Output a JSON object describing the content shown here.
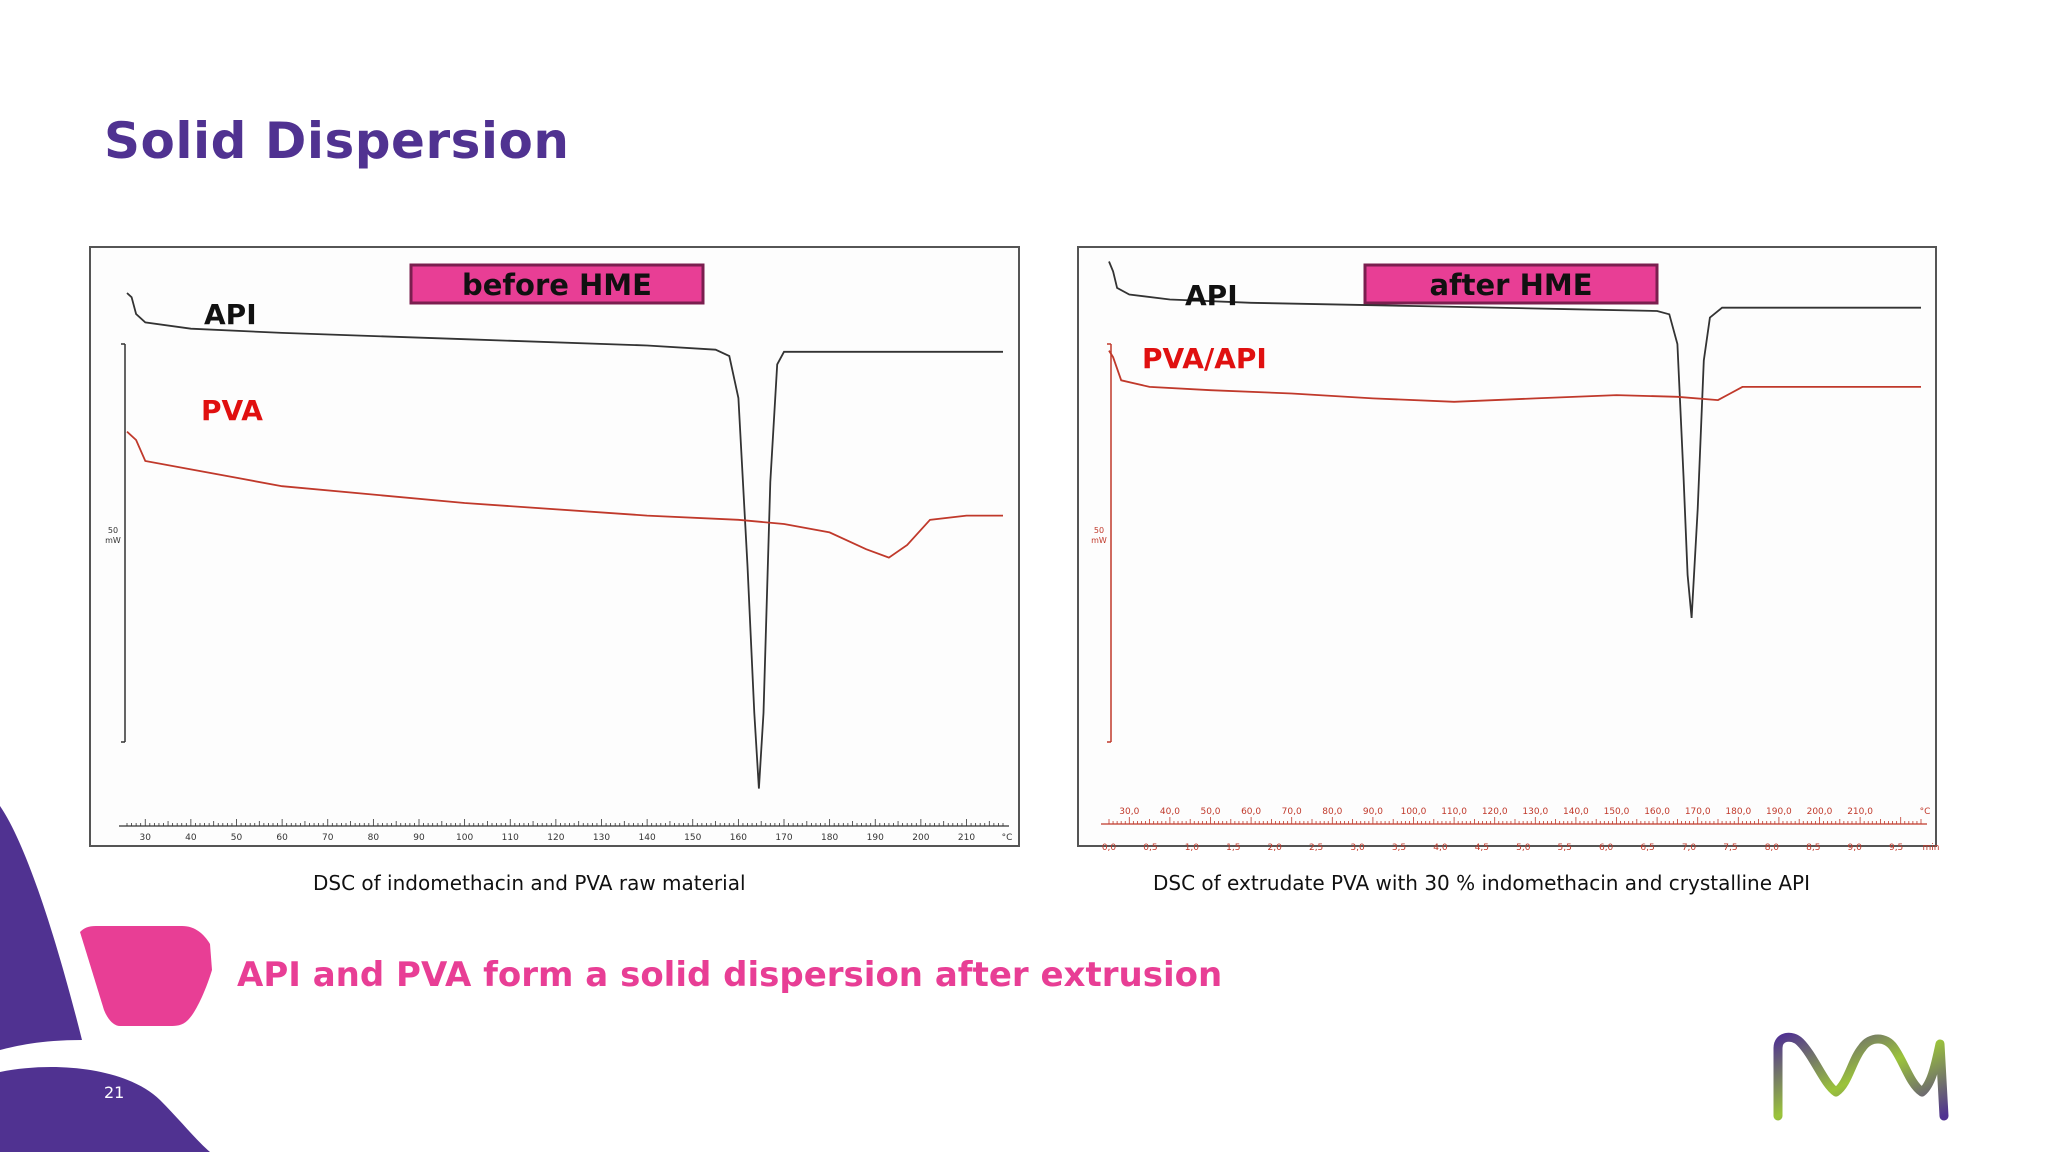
{
  "slide": {
    "title": "Solid Dispersion",
    "conclusion": "API and PVA form a solid dispersion after extrusion",
    "page_number": "21",
    "colors": {
      "title": "#503291",
      "accent": "#e83e95",
      "brand_purple": "#503291",
      "logo_green": "#9bc43a"
    },
    "logo_icon": "merck-m-logo"
  },
  "chart_data": [
    {
      "type": "line",
      "banner": "before HME",
      "caption": "DSC of indomethacin and PVA raw material",
      "y_scale_label": "50",
      "y_unit": "mW",
      "x_unit": "°C",
      "x_ticks": [
        "30",
        "40",
        "50",
        "60",
        "70",
        "80",
        "90",
        "100",
        "110",
        "120",
        "130",
        "140",
        "150",
        "160",
        "170",
        "180",
        "190",
        "200",
        "210"
      ],
      "xlim": [
        26,
        218
      ],
      "series": [
        {
          "name": "API",
          "color": "#333333",
          "points": [
            [
              26,
              5
            ],
            [
              27,
              4
            ],
            [
              28,
              0
            ],
            [
              30,
              -2
            ],
            [
              40,
              -3.5
            ],
            [
              60,
              -4.5
            ],
            [
              100,
              -6
            ],
            [
              140,
              -7.5
            ],
            [
              155,
              -8.5
            ],
            [
              158,
              -10
            ],
            [
              160,
              -20
            ],
            [
              162,
              -60
            ],
            [
              163.5,
              -95
            ],
            [
              164.5,
              -113
            ],
            [
              165.5,
              -95
            ],
            [
              167,
              -40
            ],
            [
              168.5,
              -12
            ],
            [
              170,
              -9
            ],
            [
              178,
              -9
            ],
            [
              195,
              -9
            ],
            [
              218,
              -9
            ]
          ]
        },
        {
          "name": "PVA",
          "color": "#c0392b",
          "points": [
            [
              26,
              -28
            ],
            [
              28,
              -30
            ],
            [
              30,
              -35
            ],
            [
              40,
              -37
            ],
            [
              50,
              -39
            ],
            [
              60,
              -41
            ],
            [
              100,
              -45
            ],
            [
              140,
              -48
            ],
            [
              160,
              -49
            ],
            [
              170,
              -50
            ],
            [
              180,
              -52
            ],
            [
              188,
              -56
            ],
            [
              193,
              -58
            ],
            [
              197,
              -55
            ],
            [
              202,
              -49
            ],
            [
              210,
              -48
            ],
            [
              218,
              -48
            ]
          ]
        }
      ]
    },
    {
      "type": "line",
      "banner": "after HME",
      "caption": "DSC of extrudate PVA with 30 % indomethacin and crystalline API",
      "y_scale_label": "50",
      "y_unit": "mW",
      "x_unit": "°C",
      "x_ticks": [
        "30,0",
        "40,0",
        "50,0",
        "60,0",
        "70,0",
        "80,0",
        "90,0",
        "100,0",
        "110,0",
        "120,0",
        "130,0",
        "140,0",
        "150,0",
        "160,0",
        "170,0",
        "180,0",
        "190,0",
        "200,0",
        "210,0"
      ],
      "time_unit": "min",
      "time_ticks": [
        "0,0",
        "0,5",
        "1,0",
        "1,5",
        "2,0",
        "2,5",
        "3,0",
        "3,5",
        "4,0",
        "4,5",
        "5,0",
        "5,5",
        "6,0",
        "6,5",
        "7,0",
        "7,5",
        "8,0",
        "8,5",
        "9,0",
        "9,5"
      ],
      "xlim": [
        25,
        225
      ],
      "series": [
        {
          "name": "API",
          "color": "#333333",
          "points": [
            [
              25,
              5
            ],
            [
              26,
              2
            ],
            [
              27,
              -3
            ],
            [
              30,
              -5
            ],
            [
              40,
              -6.5
            ],
            [
              60,
              -7.5
            ],
            [
              100,
              -8.5
            ],
            [
              140,
              -9.5
            ],
            [
              160,
              -10
            ],
            [
              163,
              -11
            ],
            [
              165,
              -20
            ],
            [
              166.5,
              -60
            ],
            [
              167.5,
              -90
            ],
            [
              168.5,
              -103
            ],
            [
              170,
              -70
            ],
            [
              171.5,
              -25
            ],
            [
              173,
              -12
            ],
            [
              176,
              -9
            ],
            [
              190,
              -9
            ],
            [
              225,
              -9
            ]
          ]
        },
        {
          "name": "PVA/API",
          "color": "#c0392b",
          "points": [
            [
              25,
              -22
            ],
            [
              26,
              -24
            ],
            [
              28,
              -31
            ],
            [
              35,
              -33
            ],
            [
              50,
              -34
            ],
            [
              70,
              -35
            ],
            [
              90,
              -36.5
            ],
            [
              110,
              -37.5
            ],
            [
              130,
              -36.5
            ],
            [
              150,
              -35.5
            ],
            [
              165,
              -36
            ],
            [
              175,
              -37
            ],
            [
              178,
              -35
            ],
            [
              181,
              -33
            ],
            [
              185,
              -33
            ],
            [
              200,
              -33
            ],
            [
              225,
              -33
            ]
          ]
        }
      ]
    }
  ]
}
